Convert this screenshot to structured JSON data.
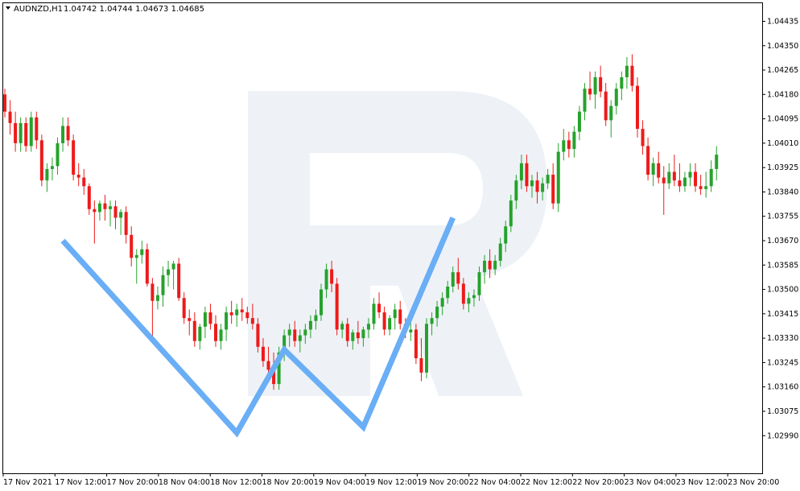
{
  "header": {
    "dropdown_icon": "triangle-down-icon",
    "symbol": "AUDNZD,H1",
    "ohlc": "1.04742 1.04744 1.04673 1.04685"
  },
  "colors": {
    "bull": "#26a22c",
    "bear": "#ee1a1a",
    "pattern_line": "#6aaef5",
    "watermark": "#eef2f7",
    "axis": "#000000"
  },
  "chart_data": {
    "type": "candlestick",
    "symbol": "AUDNZD",
    "timeframe": "H1",
    "ylim": [
      1.0287,
      1.0447
    ],
    "y_ticks": [
      "1.04435",
      "1.04350",
      "1.04265",
      "1.04180",
      "1.04095",
      "1.04010",
      "1.03925",
      "1.03840",
      "1.03755",
      "1.03670",
      "1.03585",
      "1.03500",
      "1.03415",
      "1.03330",
      "1.03245",
      "1.03160",
      "1.03075",
      "1.02990"
    ],
    "x_ticks": [
      "17 Nov 2021",
      "17 Nov 12:00",
      "17 Nov 20:00",
      "18 Nov 04:00",
      "18 Nov 12:00",
      "18 Nov 20:00",
      "19 Nov 04:00",
      "19 Nov 12:00",
      "19 Nov 20:00",
      "22 Nov 04:00",
      "22 Nov 12:00",
      "22 Nov 20:00",
      "23 Nov 04:00",
      "23 Nov 12:00",
      "23 Nov 20:00"
    ],
    "candles": [
      [
        1.0418,
        1.042,
        1.041,
        1.0412
      ],
      [
        1.0412,
        1.0416,
        1.0404,
        1.0408
      ],
      [
        1.0408,
        1.0412,
        1.0398,
        1.0401
      ],
      [
        1.0401,
        1.041,
        1.0398,
        1.0408
      ],
      [
        1.0408,
        1.041,
        1.0398,
        1.04
      ],
      [
        1.04,
        1.0412,
        1.0398,
        1.041
      ],
      [
        1.041,
        1.0412,
        1.0399,
        1.0402
      ],
      [
        1.0402,
        1.0404,
        1.0386,
        1.0388
      ],
      [
        1.0388,
        1.0394,
        1.0384,
        1.0392
      ],
      [
        1.0392,
        1.0396,
        1.0388,
        1.0393
      ],
      [
        1.0393,
        1.0403,
        1.039,
        1.0401
      ],
      [
        1.0401,
        1.041,
        1.0398,
        1.0407
      ],
      [
        1.0407,
        1.041,
        1.04,
        1.0402
      ],
      [
        1.0402,
        1.0404,
        1.0388,
        1.039
      ],
      [
        1.039,
        1.0394,
        1.0386,
        1.0389
      ],
      [
        1.0389,
        1.0392,
        1.0383,
        1.0386
      ],
      [
        1.0386,
        1.0387,
        1.0376,
        1.0378
      ],
      [
        1.0378,
        1.0381,
        1.0366,
        1.0377
      ],
      [
        1.0377,
        1.0381,
        1.0374,
        1.038
      ],
      [
        1.038,
        1.0383,
        1.0374,
        1.0378
      ],
      [
        1.0378,
        1.0381,
        1.0372,
        1.0379
      ],
      [
        1.0379,
        1.0381,
        1.0371,
        1.0375
      ],
      [
        1.0375,
        1.0378,
        1.0369,
        1.0377
      ],
      [
        1.0377,
        1.0379,
        1.0366,
        1.0369
      ],
      [
        1.0369,
        1.0372,
        1.0358,
        1.0361
      ],
      [
        1.0361,
        1.0364,
        1.0352,
        1.0362
      ],
      [
        1.0362,
        1.0367,
        1.0359,
        1.0364
      ],
      [
        1.0364,
        1.0366,
        1.0351,
        1.0352
      ],
      [
        1.0352,
        1.0354,
        1.0333,
        1.0346
      ],
      [
        1.0346,
        1.0351,
        1.0343,
        1.0348
      ],
      [
        1.0348,
        1.0358,
        1.0344,
        1.0355
      ],
      [
        1.0355,
        1.036,
        1.0351,
        1.0357
      ],
      [
        1.0357,
        1.036,
        1.035,
        1.0359
      ],
      [
        1.0359,
        1.0361,
        1.0346,
        1.0347
      ],
      [
        1.0347,
        1.0349,
        1.0338,
        1.034
      ],
      [
        1.034,
        1.0343,
        1.0334,
        1.0339
      ],
      [
        1.0339,
        1.0342,
        1.033,
        1.0332
      ],
      [
        1.0332,
        1.0338,
        1.0329,
        1.0337
      ],
      [
        1.0337,
        1.0344,
        1.0333,
        1.0342
      ],
      [
        1.0342,
        1.0345,
        1.0336,
        1.0338
      ],
      [
        1.0338,
        1.0341,
        1.033,
        1.0332
      ],
      [
        1.0332,
        1.0338,
        1.0329,
        1.0336
      ],
      [
        1.0336,
        1.0344,
        1.0332,
        1.0342
      ],
      [
        1.0342,
        1.0346,
        1.0338,
        1.0341
      ],
      [
        1.0341,
        1.0345,
        1.0337,
        1.0343
      ],
      [
        1.0343,
        1.0347,
        1.0339,
        1.0342
      ],
      [
        1.0342,
        1.0344,
        1.0338,
        1.034
      ],
      [
        1.034,
        1.0345,
        1.0336,
        1.0338
      ],
      [
        1.0338,
        1.034,
        1.0328,
        1.033
      ],
      [
        1.033,
        1.0333,
        1.0323,
        1.0325
      ],
      [
        1.0325,
        1.033,
        1.0318,
        1.0322
      ],
      [
        1.0322,
        1.0328,
        1.0315,
        1.0317
      ],
      [
        1.0317,
        1.033,
        1.0315,
        1.0328
      ],
      [
        1.0328,
        1.0336,
        1.0325,
        1.0334
      ],
      [
        1.0334,
        1.0338,
        1.033,
        1.0336
      ],
      [
        1.0336,
        1.0339,
        1.033,
        1.0332
      ],
      [
        1.0332,
        1.0336,
        1.0328,
        1.0334
      ],
      [
        1.0334,
        1.0338,
        1.0331,
        1.0336
      ],
      [
        1.0336,
        1.0341,
        1.0333,
        1.0339
      ],
      [
        1.0339,
        1.0343,
        1.0336,
        1.0341
      ],
      [
        1.0341,
        1.0352,
        1.0339,
        1.035
      ],
      [
        1.035,
        1.0359,
        1.0347,
        1.0357
      ],
      [
        1.0357,
        1.036,
        1.0349,
        1.0352
      ],
      [
        1.0352,
        1.0354,
        1.0334,
        1.0336
      ],
      [
        1.0336,
        1.0339,
        1.0333,
        1.0338
      ],
      [
        1.0338,
        1.034,
        1.033,
        1.0332
      ],
      [
        1.0332,
        1.0336,
        1.0329,
        1.0335
      ],
      [
        1.0335,
        1.0339,
        1.0331,
        1.0333
      ],
      [
        1.0333,
        1.0337,
        1.033,
        1.0336
      ],
      [
        1.0336,
        1.034,
        1.0333,
        1.0338
      ],
      [
        1.0338,
        1.0347,
        1.0336,
        1.0345
      ],
      [
        1.0345,
        1.0349,
        1.034,
        1.0342
      ],
      [
        1.0342,
        1.0344,
        1.0334,
        1.0336
      ],
      [
        1.0336,
        1.0341,
        1.0334,
        1.034
      ],
      [
        1.034,
        1.0345,
        1.0336,
        1.0343
      ],
      [
        1.0343,
        1.0346,
        1.0336,
        1.0338
      ],
      [
        1.0338,
        1.034,
        1.0333,
        1.0335
      ],
      [
        1.0335,
        1.0339,
        1.0332,
        1.0336
      ],
      [
        1.0336,
        1.0338,
        1.0324,
        1.0326
      ],
      [
        1.0326,
        1.0333,
        1.0318,
        1.0321
      ],
      [
        1.0321,
        1.034,
        1.0319,
        1.0338
      ],
      [
        1.0338,
        1.0342,
        1.0334,
        1.034
      ],
      [
        1.034,
        1.0346,
        1.0337,
        1.0344
      ],
      [
        1.0344,
        1.0349,
        1.0341,
        1.0347
      ],
      [
        1.0347,
        1.0353,
        1.0345,
        1.0351
      ],
      [
        1.0351,
        1.0358,
        1.0349,
        1.0356
      ],
      [
        1.0356,
        1.0361,
        1.035,
        1.0352
      ],
      [
        1.0352,
        1.0354,
        1.0343,
        1.0345
      ],
      [
        1.0345,
        1.0349,
        1.0342,
        1.0347
      ],
      [
        1.0347,
        1.035,
        1.0344,
        1.0348
      ],
      [
        1.0348,
        1.0358,
        1.0346,
        1.0356
      ],
      [
        1.0356,
        1.0362,
        1.0352,
        1.036
      ],
      [
        1.036,
        1.0364,
        1.0354,
        1.0357
      ],
      [
        1.0357,
        1.0362,
        1.0355,
        1.036
      ],
      [
        1.036,
        1.0368,
        1.0358,
        1.0366
      ],
      [
        1.0366,
        1.0374,
        1.0363,
        1.0372
      ],
      [
        1.0372,
        1.0383,
        1.037,
        1.0381
      ],
      [
        1.0381,
        1.039,
        1.0378,
        1.0388
      ],
      [
        1.0388,
        1.0397,
        1.0385,
        1.0394
      ],
      [
        1.0394,
        1.0397,
        1.0384,
        1.0386
      ],
      [
        1.0386,
        1.039,
        1.0382,
        1.0388
      ],
      [
        1.0388,
        1.0391,
        1.038,
        1.0384
      ],
      [
        1.0384,
        1.0389,
        1.0381,
        1.0387
      ],
      [
        1.0387,
        1.0392,
        1.0385,
        1.039
      ],
      [
        1.039,
        1.0394,
        1.0378,
        1.038
      ],
      [
        1.038,
        1.0401,
        1.0377,
        1.0398
      ],
      [
        1.0398,
        1.0406,
        1.0395,
        1.0402
      ],
      [
        1.0402,
        1.0405,
        1.0396,
        1.0399
      ],
      [
        1.0399,
        1.0407,
        1.0396,
        1.0405
      ],
      [
        1.0405,
        1.0414,
        1.0402,
        1.0412
      ],
      [
        1.0412,
        1.0422,
        1.0409,
        1.042
      ],
      [
        1.042,
        1.0426,
        1.0416,
        1.0418
      ],
      [
        1.0418,
        1.0426,
        1.0413,
        1.0424
      ],
      [
        1.0424,
        1.0428,
        1.0417,
        1.0419
      ],
      [
        1.0419,
        1.0422,
        1.0407,
        1.0409
      ],
      [
        1.0409,
        1.0416,
        1.0403,
        1.0414
      ],
      [
        1.0414,
        1.0422,
        1.0411,
        1.042
      ],
      [
        1.042,
        1.0426,
        1.0416,
        1.0424
      ],
      [
        1.0424,
        1.0431,
        1.042,
        1.0428
      ],
      [
        1.0428,
        1.0432,
        1.0419,
        1.0421
      ],
      [
        1.0421,
        1.0424,
        1.0403,
        1.0406
      ],
      [
        1.0406,
        1.0409,
        1.0397,
        1.04
      ],
      [
        1.04,
        1.0403,
        1.0388,
        1.039
      ],
      [
        1.039,
        1.0396,
        1.0386,
        1.0394
      ],
      [
        1.0394,
        1.0398,
        1.0387,
        1.0389
      ],
      [
        1.0389,
        1.0393,
        1.0376,
        1.0387
      ],
      [
        1.0387,
        1.0394,
        1.0385,
        1.0391
      ],
      [
        1.0391,
        1.0397,
        1.0386,
        1.0388
      ],
      [
        1.0388,
        1.0394,
        1.0384,
        1.0386
      ],
      [
        1.0386,
        1.0391,
        1.0384,
        1.0389
      ],
      [
        1.0389,
        1.0394,
        1.0386,
        1.0391
      ],
      [
        1.0391,
        1.0394,
        1.0384,
        1.0386
      ],
      [
        1.0386,
        1.039,
        1.0383,
        1.0385
      ],
      [
        1.0385,
        1.0391,
        1.0382,
        1.0386
      ],
      [
        1.0386,
        1.0395,
        1.0384,
        1.0392
      ],
      [
        1.0392,
        1.04,
        1.0388,
        1.0397
      ]
    ],
    "w_pattern": [
      {
        "x": "17 Nov 11:00",
        "y": 1.0367
      },
      {
        "x": "18 Nov 20:00",
        "y": 1.03
      },
      {
        "x": "19 Nov 05:00",
        "y": 1.0329
      },
      {
        "x": "19 Nov 20:00",
        "y": 1.0302
      },
      {
        "x": "22 Nov 13:00",
        "y": 1.0375
      }
    ]
  }
}
